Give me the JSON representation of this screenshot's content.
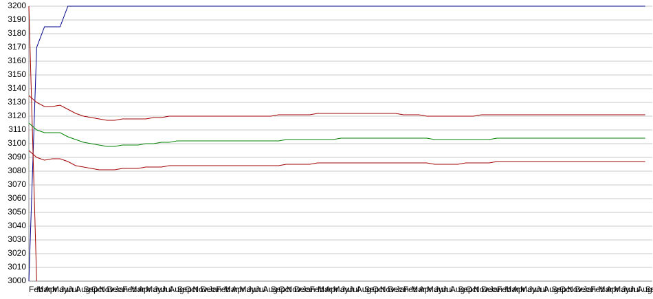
{
  "chart_data": {
    "type": "line",
    "categories": [
      "Feb",
      "Mar",
      "Apr",
      "May",
      "Jun",
      "Jul",
      "Aug",
      "Sep",
      "Oct",
      "Nov",
      "Dec",
      "Jan",
      "Feb",
      "Mar",
      "Apr",
      "May",
      "Jun",
      "Jul",
      "Aug",
      "Sep",
      "Oct",
      "Nov",
      "Dec",
      "Jan",
      "Feb",
      "Mar",
      "Apr",
      "May",
      "Jun",
      "Jul",
      "Aug",
      "Sep",
      "Oct",
      "Nov",
      "Dec",
      "Jan",
      "Feb",
      "Mar",
      "Apr",
      "May",
      "Jun",
      "Jul",
      "Aug",
      "Sep",
      "Oct",
      "Nov",
      "Dec",
      "Jan",
      "Feb",
      "Mar",
      "Apr",
      "May",
      "Jun",
      "Jul",
      "Aug",
      "Sep",
      "Oct",
      "Nov",
      "Dec",
      "Jan",
      "Feb",
      "Mar",
      "Apr",
      "May",
      "Jun",
      "Jul",
      "Aug",
      "Sep",
      "Oct",
      "Nov",
      "Dec",
      "Jan",
      "Feb",
      "Mar",
      "Apr",
      "May",
      "Jun",
      "Jul",
      "Aug",
      "Sep"
    ],
    "series": [
      {
        "color": "#00008b",
        "values": [
          3000,
          3170,
          3185,
          3185,
          3185,
          3200,
          3200,
          3200,
          3200,
          3200,
          3200,
          3200,
          3200,
          3200,
          3200,
          3200,
          3200,
          3200,
          3200,
          3200,
          3200,
          3200,
          3200,
          3200,
          3200,
          3200,
          3200,
          3200,
          3200,
          3200,
          3200,
          3200,
          3200,
          3200,
          3200,
          3200,
          3200,
          3200,
          3200,
          3200,
          3200,
          3200,
          3200,
          3200,
          3200,
          3200,
          3200,
          3200,
          3200,
          3200,
          3200,
          3200,
          3200,
          3200,
          3200,
          3200,
          3200,
          3200,
          3200,
          3200,
          3200,
          3200,
          3200,
          3200,
          3200,
          3200,
          3200,
          3200,
          3200,
          3200,
          3200,
          3200,
          3200,
          3200,
          3200,
          3200,
          3200,
          3200,
          3200,
          3200
        ]
      },
      {
        "color": "#a00000",
        "values": [
          3200,
          3000,
          null,
          null,
          null,
          null,
          null,
          null,
          null,
          null,
          null,
          null,
          null,
          null,
          null,
          null,
          null,
          null,
          null,
          null,
          null,
          null,
          null,
          null,
          null,
          null,
          null,
          null,
          null,
          null,
          null,
          null,
          null,
          null,
          null,
          null,
          null,
          null,
          null,
          null,
          null,
          null,
          null,
          null,
          null,
          null,
          null,
          null,
          null,
          null,
          null,
          null,
          null,
          null,
          null,
          null,
          null,
          null,
          null,
          null,
          null,
          null,
          null,
          null,
          null,
          null,
          null,
          null,
          null,
          null,
          null,
          null,
          null,
          null,
          null,
          null,
          null,
          null,
          null,
          null
        ]
      },
      {
        "color": "#a00000",
        "values": [
          3135,
          3130,
          3127,
          3127,
          3128,
          3125,
          3122,
          3120,
          3119,
          3118,
          3117,
          3117,
          3118,
          3118,
          3118,
          3118,
          3119,
          3119,
          3120,
          3120,
          3120,
          3120,
          3120,
          3120,
          3120,
          3120,
          3120,
          3120,
          3120,
          3120,
          3120,
          3120,
          3121,
          3121,
          3121,
          3121,
          3121,
          3122,
          3122,
          3122,
          3122,
          3122,
          3122,
          3122,
          3122,
          3122,
          3122,
          3122,
          3121,
          3121,
          3121,
          3120,
          3120,
          3120,
          3120,
          3120,
          3120,
          3120,
          3121,
          3121,
          3121,
          3121,
          3121,
          3121,
          3121,
          3121,
          3121,
          3121,
          3121,
          3121,
          3121,
          3121,
          3121,
          3121,
          3121,
          3121,
          3121,
          3121,
          3121,
          3121
        ]
      },
      {
        "color": "#008000",
        "values": [
          3115,
          3110,
          3108,
          3108,
          3108,
          3105,
          3103,
          3101,
          3100,
          3099,
          3098,
          3098,
          3099,
          3099,
          3099,
          3100,
          3100,
          3101,
          3101,
          3102,
          3102,
          3102,
          3102,
          3102,
          3102,
          3102,
          3102,
          3102,
          3102,
          3102,
          3102,
          3102,
          3102,
          3103,
          3103,
          3103,
          3103,
          3103,
          3103,
          3103,
          3104,
          3104,
          3104,
          3104,
          3104,
          3104,
          3104,
          3104,
          3104,
          3104,
          3104,
          3104,
          3103,
          3103,
          3103,
          3103,
          3103,
          3103,
          3103,
          3103,
          3104,
          3104,
          3104,
          3104,
          3104,
          3104,
          3104,
          3104,
          3104,
          3104,
          3104,
          3104,
          3104,
          3104,
          3104,
          3104,
          3104,
          3104,
          3104,
          3104
        ]
      },
      {
        "color": "#a00000",
        "values": [
          3095,
          3090,
          3088,
          3089,
          3089,
          3087,
          3084,
          3083,
          3082,
          3081,
          3081,
          3081,
          3082,
          3082,
          3082,
          3083,
          3083,
          3083,
          3084,
          3084,
          3084,
          3084,
          3084,
          3084,
          3084,
          3084,
          3084,
          3084,
          3084,
          3084,
          3084,
          3084,
          3084,
          3085,
          3085,
          3085,
          3085,
          3086,
          3086,
          3086,
          3086,
          3086,
          3086,
          3086,
          3086,
          3086,
          3086,
          3086,
          3086,
          3086,
          3086,
          3086,
          3085,
          3085,
          3085,
          3085,
          3086,
          3086,
          3086,
          3086,
          3087,
          3087,
          3087,
          3087,
          3087,
          3087,
          3087,
          3087,
          3087,
          3087,
          3087,
          3087,
          3087,
          3087,
          3087,
          3087,
          3087,
          3087,
          3087,
          3087
        ]
      }
    ],
    "ylim": [
      3000,
      3200
    ],
    "yticks": [
      3000,
      3010,
      3020,
      3030,
      3040,
      3050,
      3060,
      3070,
      3080,
      3090,
      3100,
      3110,
      3120,
      3130,
      3140,
      3150,
      3160,
      3170,
      3180,
      3190,
      3200
    ],
    "grid": true
  }
}
